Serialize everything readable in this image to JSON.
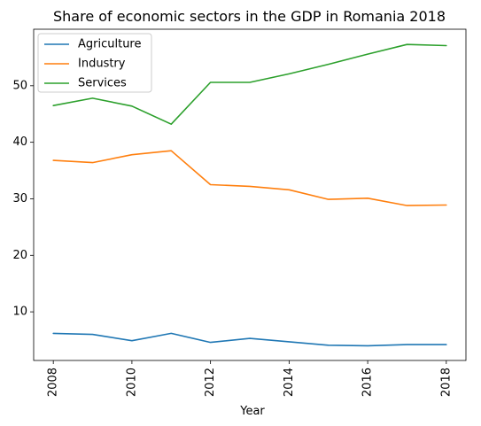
{
  "chart_data": {
    "type": "line",
    "title": "Share of economic sectors in the GDP in Romania 2018",
    "xlabel": "Year",
    "ylabel": "",
    "x": [
      2008,
      2009,
      2010,
      2011,
      2012,
      2013,
      2014,
      2015,
      2016,
      2017,
      2018
    ],
    "xticks": [
      "2008",
      "2010",
      "2012",
      "2014",
      "2016",
      "2018"
    ],
    "yticks": [
      "10",
      "20",
      "30",
      "40",
      "50"
    ],
    "xlim": [
      2007.5,
      2018.5
    ],
    "ylim": [
      1.4,
      60.0
    ],
    "grid": false,
    "legend_position": "upper-left",
    "series": [
      {
        "name": "Agriculture",
        "color": "#1f77b4",
        "values": [
          6.2,
          6.0,
          4.9,
          6.2,
          4.6,
          5.3,
          4.7,
          4.1,
          4.0,
          4.2,
          4.2
        ]
      },
      {
        "name": "Industry",
        "color": "#ff7f0e",
        "values": [
          36.8,
          36.4,
          37.8,
          38.5,
          32.5,
          32.2,
          31.6,
          29.9,
          30.1,
          28.8,
          28.9
        ]
      },
      {
        "name": "Services",
        "color": "#2ca02c",
        "values": [
          46.5,
          47.8,
          46.4,
          43.2,
          50.6,
          50.6,
          52.1,
          53.8,
          55.6,
          57.3,
          57.1
        ]
      }
    ]
  }
}
